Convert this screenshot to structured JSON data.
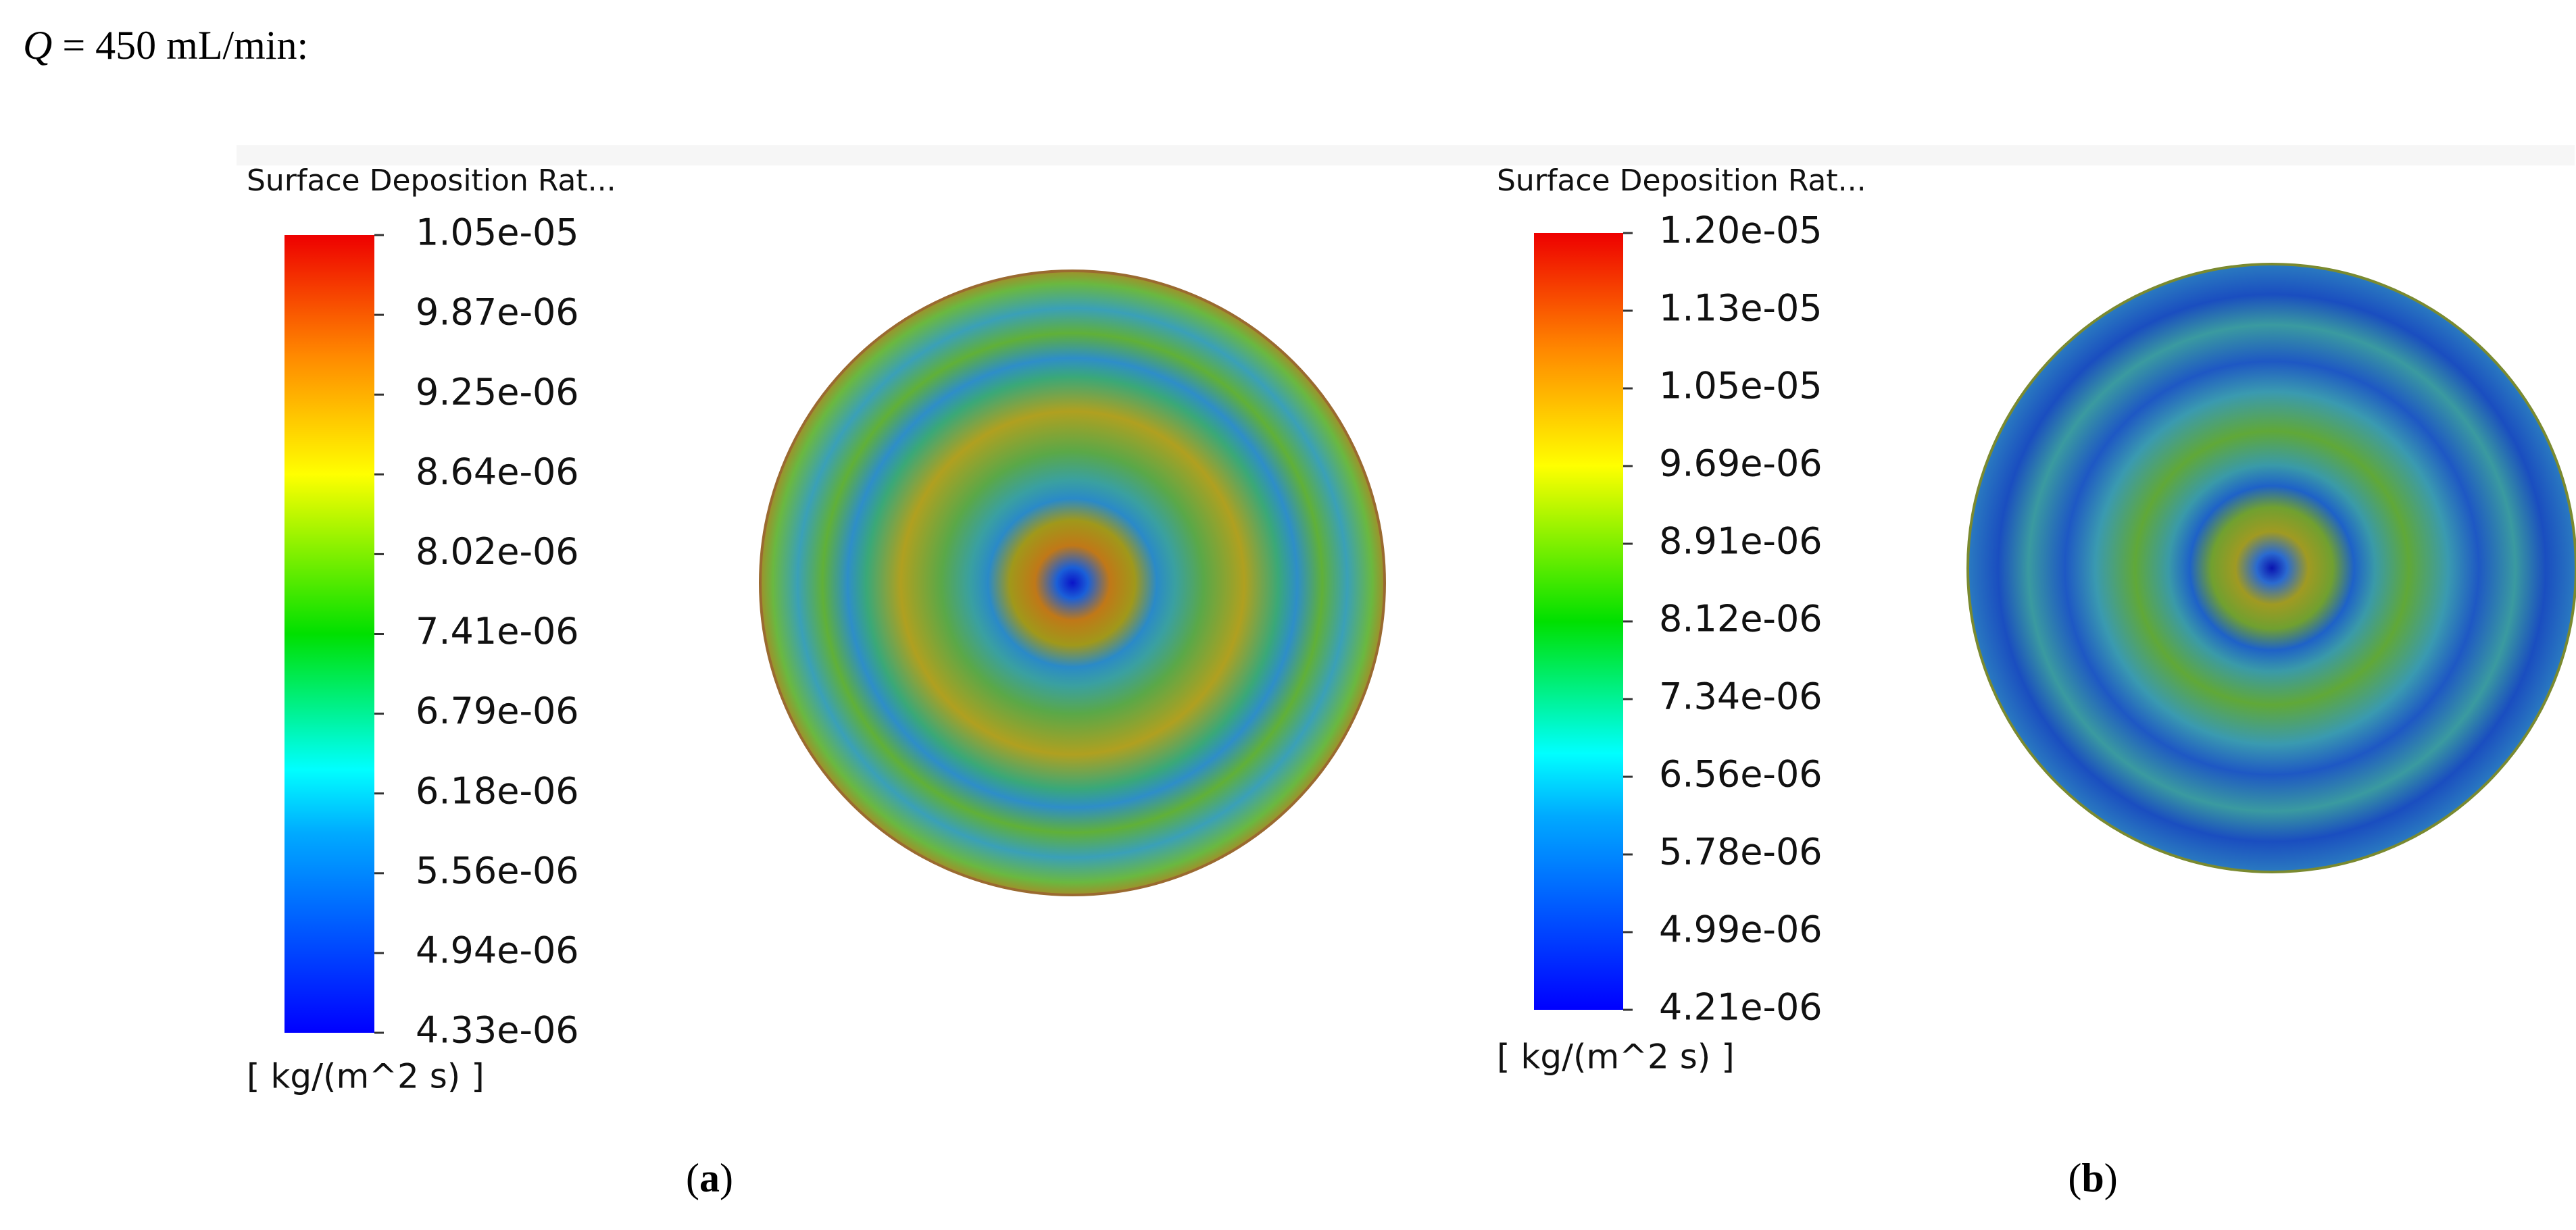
{
  "caption": {
    "symbol": "Q",
    "text": "= 450 mL/min:"
  },
  "panels": [
    {
      "label_open": "(",
      "label": "a",
      "label_close": ")",
      "colorbar": {
        "title": "Surface Deposition Rat...",
        "ticks": [
          "1.05e-05",
          "9.87e-06",
          "9.25e-06",
          "8.64e-06",
          "8.02e-06",
          "7.41e-06",
          "6.79e-06",
          "6.18e-06",
          "5.56e-06",
          "4.94e-06",
          "4.33e-06"
        ],
        "unit": "[ kg/(m^2 s) ]"
      }
    },
    {
      "label_open": "(",
      "label": "b",
      "label_close": ")",
      "colorbar": {
        "title": "Surface Deposition Rat...",
        "ticks": [
          "1.20e-05",
          "1.13e-05",
          "1.05e-05",
          "9.69e-06",
          "8.91e-06",
          "8.12e-06",
          "7.34e-06",
          "6.56e-06",
          "5.78e-06",
          "4.99e-06",
          "4.21e-06"
        ],
        "unit": "[ kg/(m^2 s) ]"
      }
    }
  ]
}
